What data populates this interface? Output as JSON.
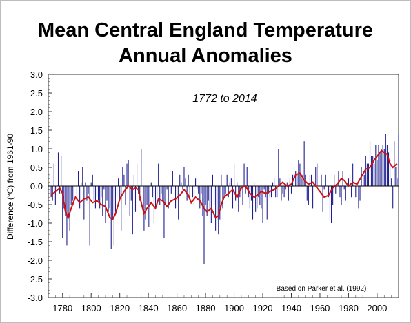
{
  "chart_data": {
    "type": "bar",
    "title": "Mean Central England Temperature",
    "subtitle": "Annual Anomalies",
    "annotation": "1772 to 2014",
    "credit": "Based on Parker et al. (1992)",
    "ylabel": "Difference (°C) from 1961-90",
    "xlabel": "",
    "xlim": [
      1770,
      2015
    ],
    "ylim": [
      -3.0,
      3.0
    ],
    "x_ticks": [
      1780,
      1800,
      1820,
      1840,
      1860,
      1880,
      1900,
      1920,
      1940,
      1960,
      1980,
      2000
    ],
    "y_ticks": [
      3.0,
      2.5,
      2.0,
      1.5,
      1.0,
      0.5,
      0.0,
      -0.5,
      -1.0,
      -1.5,
      -2.0,
      -2.5,
      -3.0
    ],
    "y_tick_labels": [
      "3.0",
      "2.5",
      "2.0",
      "1.5",
      "1.0",
      "0.5",
      "0.0",
      "-0.5",
      "-1.0",
      "-1.5",
      "-2.0",
      "-2.5",
      "-3.0"
    ],
    "grid": false,
    "series": [
      {
        "kind": "bar",
        "color": "#1f1f8f",
        "x_start": 1772,
        "values": [
          -0.3,
          -0.4,
          0.6,
          -0.5,
          -0.1,
          0.9,
          -0.2,
          0.8,
          -1.4,
          -0.6,
          -0.8,
          -1.6,
          -0.8,
          -1.2,
          -0.5,
          -0.4,
          -0.5,
          0.0,
          -0.3,
          0.4,
          -0.6,
          0.1,
          0.5,
          -0.9,
          0.1,
          -0.4,
          -0.2,
          -1.6,
          0.1,
          0.3,
          -0.4,
          -0.6,
          -0.3,
          -0.4,
          -0.6,
          -0.3,
          -0.8,
          -0.1,
          -1.0,
          -0.4,
          -0.7,
          -0.6,
          -1.7,
          -0.9,
          -1.6,
          -0.7,
          -0.3,
          0.2,
          -0.4,
          -1.2,
          0.5,
          0.3,
          -0.5,
          0.6,
          0.7,
          -0.8,
          -0.4,
          -1.3,
          0.3,
          -0.7,
          0.6,
          -0.2,
          -0.4,
          1.0,
          0.0,
          -1.2,
          -0.9,
          -0.5,
          -1.1,
          -1.1,
          0.1,
          -0.3,
          -1.0,
          -0.6,
          -0.3,
          0.6,
          -0.5,
          -0.2,
          -0.4,
          -1.4,
          -0.5,
          -0.1,
          -0.6,
          0.0,
          -0.2,
          0.4,
          -0.1,
          -0.6,
          -0.4,
          -0.9,
          0.3,
          0.1,
          -0.1,
          0.5,
          0.2,
          -0.4,
          0.3,
          -0.3,
          0.0,
          -0.3,
          -0.5,
          0.2,
          -0.1,
          -0.2,
          -0.6,
          -0.2,
          -0.8,
          -2.1,
          -0.5,
          -0.8,
          -0.4,
          -0.7,
          -1.0,
          0.3,
          -0.5,
          -1.2,
          -0.9,
          -1.3,
          -0.9,
          0.3,
          -0.6,
          -0.3,
          -0.2,
          0.3,
          -0.3,
          0.1,
          0.2,
          -0.6,
          0.6,
          -0.4,
          0.1,
          -0.7,
          -0.3,
          -0.1,
          -0.5,
          0.6,
          -0.2,
          0.5,
          -0.3,
          -0.6,
          -0.4,
          -0.9,
          0.1,
          -0.7,
          -0.6,
          -0.3,
          -0.5,
          -0.6,
          -1.0,
          -0.1,
          -0.3,
          -0.9,
          -0.2,
          -0.3,
          -0.3,
          0.1,
          0.2,
          -0.3,
          -0.3,
          1.0,
          0.2,
          -0.4,
          -0.2,
          -0.3,
          -0.1,
          0.1,
          -0.4,
          0.2,
          -0.2,
          0.3,
          0.0,
          0.4,
          0.3,
          0.7,
          0.6,
          0.2,
          0.3,
          1.2,
          0.3,
          -0.4,
          -0.5,
          0.3,
          0.3,
          -0.6,
          0.1,
          0.5,
          0.6,
          0.0,
          0.0,
          0.3,
          -0.7,
          -0.1,
          0.3,
          0.0,
          -0.3,
          -0.9,
          -1.0,
          -0.5,
          0.3,
          -0.2,
          0.0,
          0.4,
          -0.3,
          -0.5,
          0.4,
          -0.1,
          -0.4,
          0.0,
          0.2,
          0.3,
          -0.3,
          0.6,
          0.0,
          -0.3,
          0.0,
          -0.6,
          -0.4,
          0.5,
          0.0,
          0.3,
          0.8,
          0.6,
          0.6,
          1.2,
          0.8,
          0.8,
          0.6,
          1.1,
          0.7,
          1.1,
          0.9,
          1.0,
          1.1,
          1.0,
          1.4,
          1.1,
          0.9,
          0.7,
          0.2,
          -0.6,
          1.2,
          0.5,
          0.2,
          1.4
        ]
      },
      {
        "kind": "line",
        "color": "#cc1111",
        "points": [
          [
            1772,
            -0.25
          ],
          [
            1775,
            -0.15
          ],
          [
            1778,
            -0.05
          ],
          [
            1780,
            -0.2
          ],
          [
            1782,
            -0.7
          ],
          [
            1784,
            -0.85
          ],
          [
            1786,
            -0.6
          ],
          [
            1789,
            -0.3
          ],
          [
            1792,
            -0.45
          ],
          [
            1795,
            -0.35
          ],
          [
            1798,
            -0.3
          ],
          [
            1801,
            -0.45
          ],
          [
            1804,
            -0.4
          ],
          [
            1807,
            -0.5
          ],
          [
            1810,
            -0.55
          ],
          [
            1813,
            -0.85
          ],
          [
            1815,
            -0.9
          ],
          [
            1817,
            -0.75
          ],
          [
            1820,
            -0.35
          ],
          [
            1823,
            -0.15
          ],
          [
            1826,
            0.0
          ],
          [
            1829,
            -0.1
          ],
          [
            1831,
            -0.05
          ],
          [
            1833,
            -0.1
          ],
          [
            1835,
            -0.45
          ],
          [
            1837,
            -0.75
          ],
          [
            1839,
            -0.6
          ],
          [
            1842,
            -0.45
          ],
          [
            1845,
            -0.6
          ],
          [
            1847,
            -0.35
          ],
          [
            1850,
            -0.4
          ],
          [
            1853,
            -0.55
          ],
          [
            1856,
            -0.4
          ],
          [
            1859,
            -0.35
          ],
          [
            1862,
            -0.25
          ],
          [
            1865,
            -0.1
          ],
          [
            1868,
            -0.25
          ],
          [
            1870,
            -0.45
          ],
          [
            1873,
            -0.3
          ],
          [
            1876,
            -0.4
          ],
          [
            1879,
            -0.6
          ],
          [
            1881,
            -0.7
          ],
          [
            1884,
            -0.6
          ],
          [
            1887,
            -0.85
          ],
          [
            1889,
            -0.8
          ],
          [
            1891,
            -0.5
          ],
          [
            1893,
            -0.3
          ],
          [
            1896,
            -0.2
          ],
          [
            1899,
            -0.1
          ],
          [
            1902,
            -0.3
          ],
          [
            1905,
            -0.05
          ],
          [
            1908,
            0.0
          ],
          [
            1911,
            -0.2
          ],
          [
            1914,
            -0.3
          ],
          [
            1916,
            -0.25
          ],
          [
            1919,
            -0.15
          ],
          [
            1922,
            -0.2
          ],
          [
            1925,
            -0.15
          ],
          [
            1928,
            -0.1
          ],
          [
            1931,
            0.0
          ],
          [
            1934,
            0.1
          ],
          [
            1937,
            0.0
          ],
          [
            1940,
            0.05
          ],
          [
            1943,
            0.3
          ],
          [
            1946,
            0.35
          ],
          [
            1949,
            0.15
          ],
          [
            1952,
            0.05
          ],
          [
            1955,
            0.1
          ],
          [
            1957,
            0.0
          ],
          [
            1960,
            -0.15
          ],
          [
            1963,
            -0.3
          ],
          [
            1966,
            -0.25
          ],
          [
            1969,
            -0.05
          ],
          [
            1972,
            0.05
          ],
          [
            1975,
            0.2
          ],
          [
            1977,
            0.15
          ],
          [
            1980,
            0.0
          ],
          [
            1983,
            0.1
          ],
          [
            1986,
            0.05
          ],
          [
            1989,
            0.25
          ],
          [
            1992,
            0.45
          ],
          [
            1995,
            0.5
          ],
          [
            1998,
            0.7
          ],
          [
            2001,
            0.85
          ],
          [
            2003,
            0.95
          ],
          [
            2005,
            0.9
          ],
          [
            2007,
            0.85
          ],
          [
            2009,
            0.6
          ],
          [
            2011,
            0.5
          ],
          [
            2014,
            0.6
          ]
        ]
      }
    ]
  }
}
